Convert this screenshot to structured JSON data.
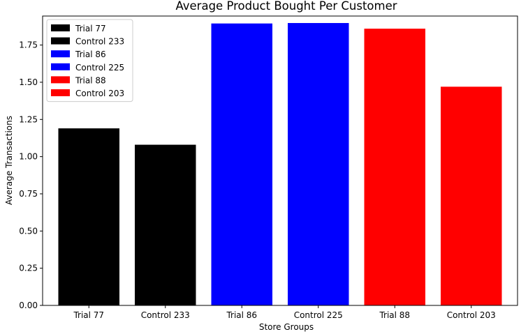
{
  "chart_data": {
    "type": "bar",
    "title": "Average Product Bought Per Customer",
    "xlabel": "Store Groups",
    "ylabel": "Average Transactions",
    "categories": [
      "Trial 77",
      "Control 233",
      "Trial 86",
      "Control 225",
      "Trial 88",
      "Control 203"
    ],
    "values": [
      1.19,
      1.08,
      1.895,
      1.898,
      1.86,
      1.47
    ],
    "colors": [
      "#000000",
      "#000000",
      "#0000ff",
      "#0000ff",
      "#ff0000",
      "#ff0000"
    ],
    "ylim": [
      0,
      1.945
    ],
    "yticks": [
      "0.00",
      "0.25",
      "0.50",
      "0.75",
      "1.00",
      "1.25",
      "1.50",
      "1.75"
    ],
    "grid": false,
    "legend": {
      "placement": "top-left",
      "entries": [
        {
          "label": "Trial 77",
          "color": "#000000"
        },
        {
          "label": "Control 233",
          "color": "#000000"
        },
        {
          "label": "Trial 86",
          "color": "#0000ff"
        },
        {
          "label": "Control 225",
          "color": "#0000ff"
        },
        {
          "label": "Trial 88",
          "color": "#ff0000"
        },
        {
          "label": "Control 203",
          "color": "#ff0000"
        }
      ]
    }
  }
}
